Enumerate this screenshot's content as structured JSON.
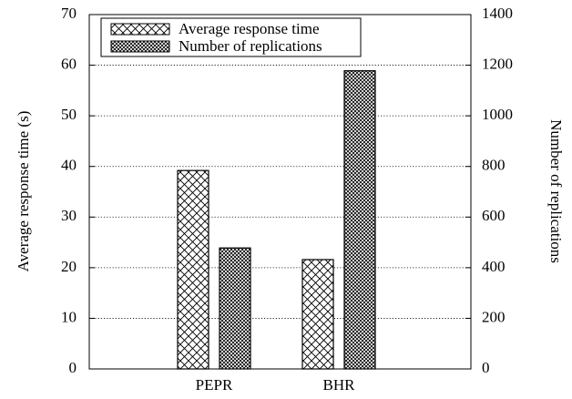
{
  "chart_data": {
    "type": "bar",
    "categories": [
      "PEPR",
      "BHR"
    ],
    "series": [
      {
        "name": "Average response time",
        "axis": "left",
        "pattern": "crosshatch-sparse",
        "values": [
          39.2,
          21.6
        ]
      },
      {
        "name": "Number of replications",
        "axis": "right",
        "pattern": "crosshatch-dense",
        "values": [
          478,
          1178
        ]
      }
    ],
    "y_left": {
      "label": "Average response time (s)",
      "range": [
        0,
        70
      ],
      "ticks": [
        "0",
        "10",
        "20",
        "30",
        "40",
        "50",
        "60",
        "70"
      ]
    },
    "y_right": {
      "label": "Number of replications",
      "range": [
        0,
        1400
      ],
      "ticks": [
        "0",
        "200",
        "400",
        "600",
        "800",
        "1000",
        "1200",
        "1400"
      ]
    },
    "grid": "horizontal-dotted",
    "legend": "top-left"
  }
}
